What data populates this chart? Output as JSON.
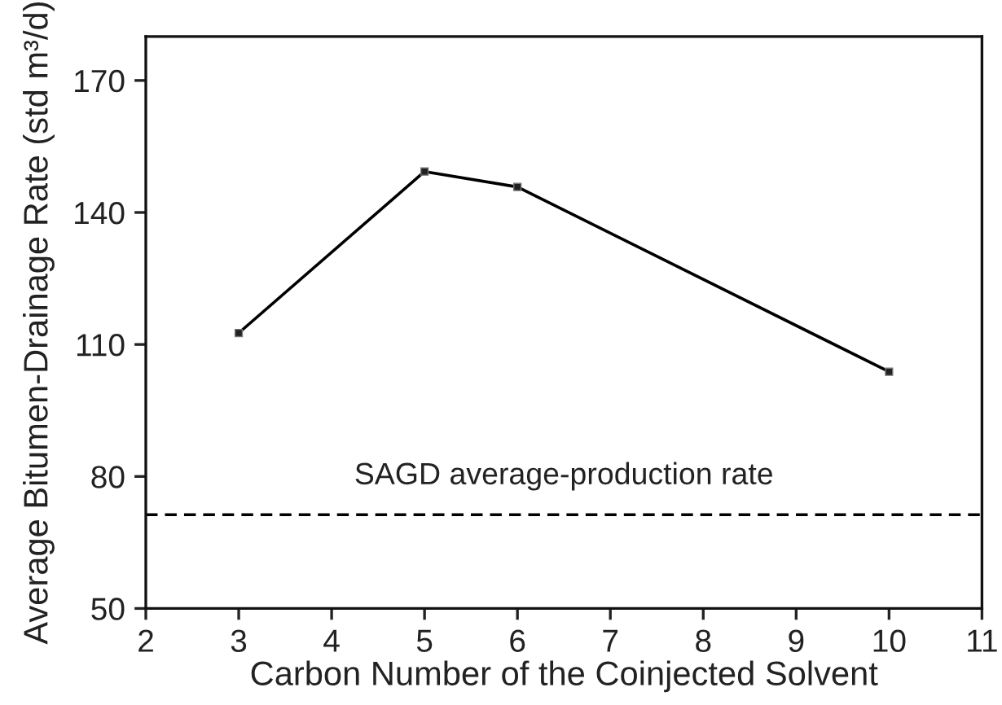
{
  "chart_data": {
    "type": "line",
    "xlabel": "Carbon Number of the Coinjected Solvent",
    "ylabel": "Average Bitumen-Drainage Rate (std m³/d)",
    "x": [
      3,
      5,
      6,
      10
    ],
    "series": [
      {
        "color": "#000000",
        "values": [
          112.6,
          149.3,
          145.8,
          103.8
        ]
      }
    ],
    "marker": "square",
    "line_style": "solid",
    "xlim": [
      2,
      11
    ],
    "xticks": [
      2,
      3,
      4,
      5,
      6,
      7,
      8,
      9,
      10,
      11
    ],
    "ylim": [
      50,
      180
    ],
    "yticks": [
      50,
      80,
      110,
      140,
      170
    ],
    "ref_lines": [
      {
        "axis": "y",
        "value": 71.3,
        "label": "SAGD average-production rate",
        "color": "#000000",
        "line_style": "dashed"
      }
    ]
  }
}
